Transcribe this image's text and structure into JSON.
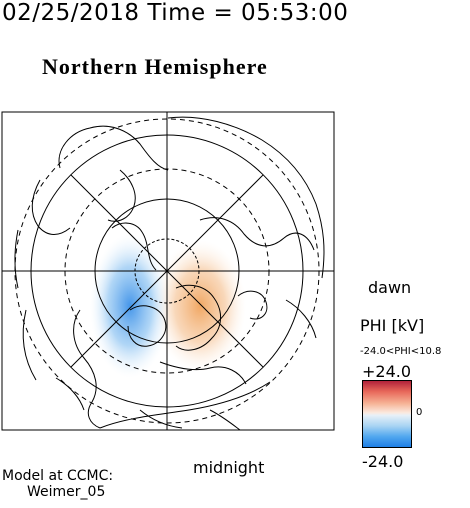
{
  "header": {
    "timestamp": "02/25/2018 Time = 05:53:00",
    "title": "Northern Hemisphere"
  },
  "map": {
    "side_labels": {
      "dawn": "dawn",
      "midnight": "midnight"
    },
    "colors": {
      "positive": "#f2a45f",
      "negative": "#3d93e8",
      "frame": "#000000"
    }
  },
  "colorbar": {
    "title": "PHI [kV]",
    "range_text": "-24.0<PHI<10.8",
    "max_label": "+24.0",
    "mid_label": "0",
    "min_label": "-24.0",
    "colors": {
      "high": "#b0223b",
      "low": "#1f7fe6"
    }
  },
  "footer": {
    "line1": "Model at CCMC:",
    "line2": "Weimer_05"
  }
}
